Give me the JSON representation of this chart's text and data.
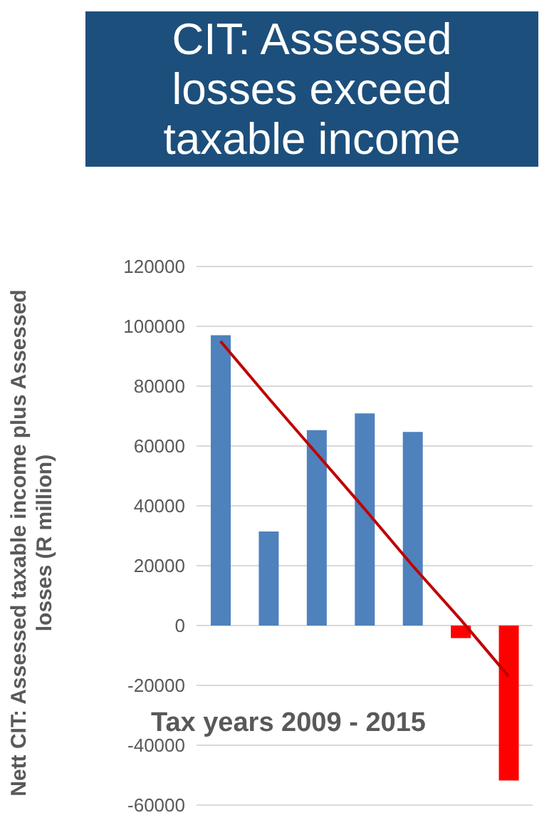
{
  "chart_data": {
    "type": "bar",
    "title": "CIT: Assessed losses exceed taxable income",
    "xlabel": "Tax years 2009 - 2015",
    "ylabel": "Nett CIT: Assessed taxable income plus Assessed losses (R million)",
    "categories": [
      null,
      null,
      null,
      null,
      null,
      null,
      null
    ],
    "series": [
      {
        "colors": [
          "#4f81bd",
          "#4f81bd",
          "#4f81bd",
          "#4f81bd",
          "#4f81bd",
          "#ff0000",
          "#ff0000"
        ],
        "values": [
          97000,
          31400,
          65300,
          70900,
          64700,
          -4200,
          -51800
        ]
      },
      {
        "type": "line",
        "color": "#c00000",
        "values": [
          95000,
          76000,
          57500,
          39000,
          20000,
          2000,
          -17000
        ]
      }
    ],
    "ylim": [
      -60000,
      120000
    ],
    "yticks": [
      -60000,
      -40000,
      -20000,
      0,
      20000,
      40000,
      60000,
      80000,
      100000,
      120000
    ],
    "grid": "y",
    "tick_labels": "y",
    "legend": false,
    "marker": "none"
  }
}
